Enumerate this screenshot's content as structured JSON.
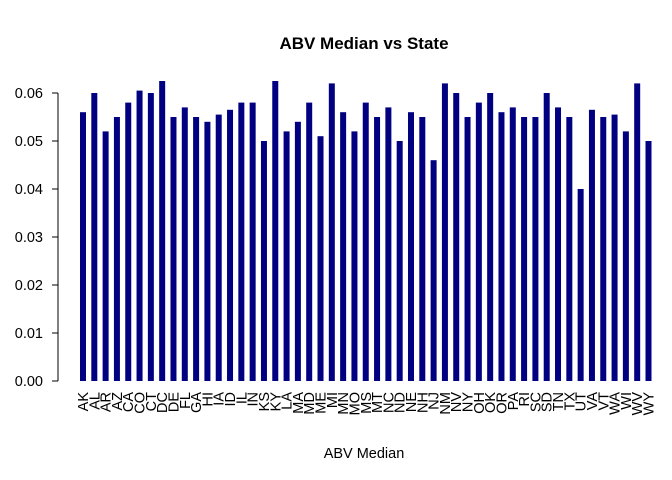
{
  "chart_data": {
    "type": "bar",
    "title": "ABV Median vs State",
    "xlabel": "ABV Median",
    "ylabel": "",
    "ylim": [
      0,
      0.0625
    ],
    "yticks": [
      "0.00",
      "0.01",
      "0.02",
      "0.03",
      "0.04",
      "0.05",
      "0.06"
    ],
    "grid": false,
    "categories": [
      "AK",
      "AL",
      "AR",
      "AZ",
      "CA",
      "CO",
      "CT",
      "DC",
      "DE",
      "FL",
      "GA",
      "HI",
      "IA",
      "ID",
      "IL",
      "IN",
      "KS",
      "KY",
      "LA",
      "MA",
      "MD",
      "ME",
      "MI",
      "MN",
      "MO",
      "MS",
      "MT",
      "NC",
      "ND",
      "NE",
      "NH",
      "NJ",
      "NM",
      "NV",
      "NY",
      "OH",
      "OK",
      "OR",
      "PA",
      "RI",
      "SC",
      "SD",
      "TN",
      "TX",
      "UT",
      "VA",
      "VT",
      "WA",
      "WI",
      "WV",
      "WY"
    ],
    "values": [
      0.056,
      0.06,
      0.052,
      0.055,
      0.058,
      0.0605,
      0.06,
      0.0625,
      0.055,
      0.057,
      0.055,
      0.054,
      0.0555,
      0.0565,
      0.058,
      0.058,
      0.05,
      0.0625,
      0.052,
      0.054,
      0.058,
      0.051,
      0.062,
      0.056,
      0.052,
      0.058,
      0.055,
      0.057,
      0.05,
      0.056,
      0.055,
      0.046,
      0.062,
      0.06,
      0.055,
      0.058,
      0.06,
      0.056,
      0.057,
      0.055,
      0.055,
      0.06,
      0.057,
      0.055,
      0.04,
      0.0565,
      0.055,
      0.0555,
      0.052,
      0.062,
      0.05
    ],
    "bar_color": "#000080"
  }
}
